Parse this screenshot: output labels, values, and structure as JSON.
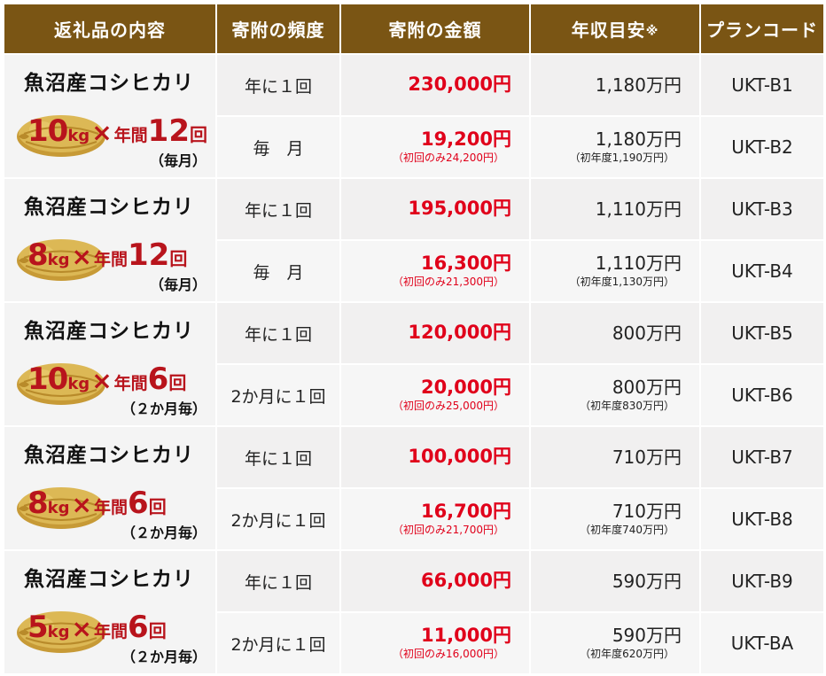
{
  "headers": {
    "content": "返礼品の内容",
    "frequency": "寄附の頻度",
    "amount": "寄附の金額",
    "income": "年収目安",
    "income_mark": "※",
    "plan_code": "プランコード"
  },
  "colors": {
    "header_bg": "#7a5514",
    "amount_red": "#e0001a",
    "badge_red": "#b8141c",
    "rice_bag": "#d8b24a"
  },
  "products": [
    {
      "name": "魚沼産コシヒカリ",
      "weight": "10",
      "unit": "kg",
      "times_mark": "×",
      "period": "年間",
      "count": "12",
      "count_unit": "回",
      "frequency_note": "（毎月）",
      "plans": [
        {
          "frequency": "年に１回",
          "amount": "230,000円",
          "amount_note": "",
          "income": "1,180万円",
          "income_note": "",
          "code": "UKT-B1"
        },
        {
          "frequency": "毎　月",
          "amount": "19,200円",
          "amount_note": "（初回のみ24,200円）",
          "income": "1,180万円",
          "income_note": "（初年度1,190万円）",
          "code": "UKT-B2"
        }
      ]
    },
    {
      "name": "魚沼産コシヒカリ",
      "weight": "8",
      "unit": "kg",
      "times_mark": "×",
      "period": "年間",
      "count": "12",
      "count_unit": "回",
      "frequency_note": "（毎月）",
      "plans": [
        {
          "frequency": "年に１回",
          "amount": "195,000円",
          "amount_note": "",
          "income": "1,110万円",
          "income_note": "",
          "code": "UKT-B3"
        },
        {
          "frequency": "毎　月",
          "amount": "16,300円",
          "amount_note": "（初回のみ21,300円）",
          "income": "1,110万円",
          "income_note": "（初年度1,130万円）",
          "code": "UKT-B4"
        }
      ]
    },
    {
      "name": "魚沼産コシヒカリ",
      "weight": "10",
      "unit": "kg",
      "times_mark": "×",
      "period": "年間",
      "count": "6",
      "count_unit": "回",
      "frequency_note": "（２か月毎）",
      "plans": [
        {
          "frequency": "年に１回",
          "amount": "120,000円",
          "amount_note": "",
          "income": "800万円",
          "income_note": "",
          "code": "UKT-B5"
        },
        {
          "frequency": "2か月に１回",
          "amount": "20,000円",
          "amount_note": "（初回のみ25,000円）",
          "income": "800万円",
          "income_note": "（初年度830万円）",
          "code": "UKT-B6"
        }
      ]
    },
    {
      "name": "魚沼産コシヒカリ",
      "weight": "8",
      "unit": "kg",
      "times_mark": "×",
      "period": "年間",
      "count": "6",
      "count_unit": "回",
      "frequency_note": "（２か月毎）",
      "plans": [
        {
          "frequency": "年に１回",
          "amount": "100,000円",
          "amount_note": "",
          "income": "710万円",
          "income_note": "",
          "code": "UKT-B7"
        },
        {
          "frequency": "2か月に１回",
          "amount": "16,700円",
          "amount_note": "（初回のみ21,700円）",
          "income": "710万円",
          "income_note": "（初年度740万円）",
          "code": "UKT-B8"
        }
      ]
    },
    {
      "name": "魚沼産コシヒカリ",
      "weight": "5",
      "unit": "kg",
      "times_mark": "×",
      "period": "年間",
      "count": "6",
      "count_unit": "回",
      "frequency_note": "（２か月毎）",
      "plans": [
        {
          "frequency": "年に１回",
          "amount": "66,000円",
          "amount_note": "",
          "income": "590万円",
          "income_note": "",
          "code": "UKT-B9"
        },
        {
          "frequency": "2か月に１回",
          "amount": "11,000円",
          "amount_note": "（初回のみ16,000円）",
          "income": "590万円",
          "income_note": "（初年度620万円）",
          "code": "UKT-BA"
        }
      ]
    }
  ]
}
